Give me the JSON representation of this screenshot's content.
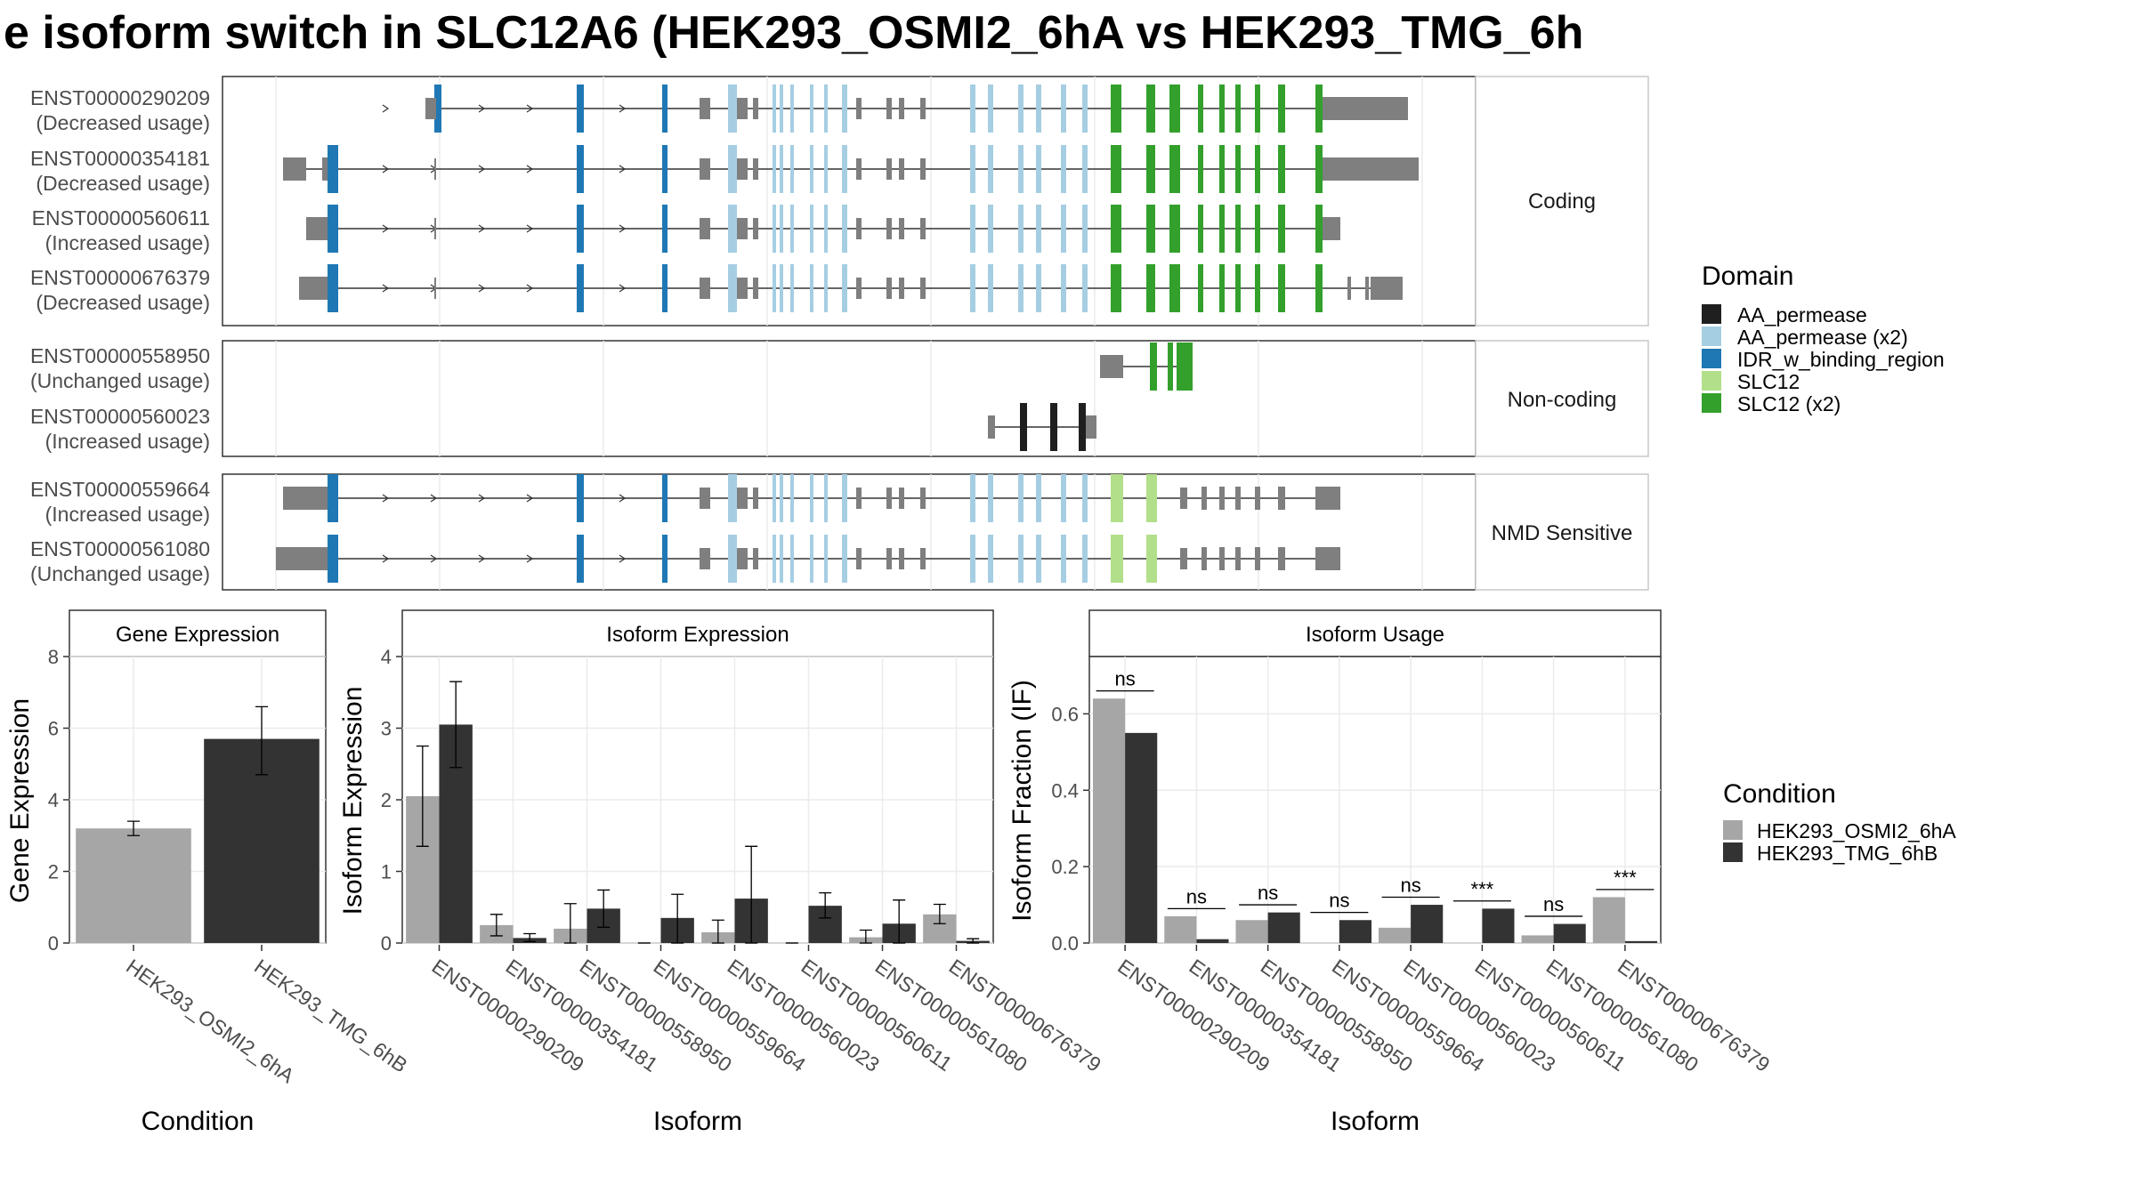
{
  "title": "e isoform switch in SLC12A6 (HEK293_OSMI2_6hA vs HEK293_TMG_6h",
  "colors": {
    "AA_permease": "#1f1f1f",
    "AA_permease (x2)": "#a6cee3",
    "IDR_w_binding_region": "#1f78b4",
    "SLC12": "#b2df8a",
    "SLC12 (x2)": "#33a02c",
    "utr": "#7f7f7f",
    "cond_a": "#a6a6a6",
    "cond_b": "#333333"
  },
  "structure": {
    "groups": [
      {
        "label": "Coding",
        "isoforms": [
          {
            "id": "ENST00000290209",
            "usage": "(Decreased usage)"
          },
          {
            "id": "ENST00000354181",
            "usage": "(Decreased usage)"
          },
          {
            "id": "ENST00000560611",
            "usage": "(Increased usage)"
          },
          {
            "id": "ENST00000676379",
            "usage": "(Decreased usage)"
          }
        ]
      },
      {
        "label": "Non-coding",
        "isoforms": [
          {
            "id": "ENST00000558950",
            "usage": "(Unchanged usage)"
          },
          {
            "id": "ENST00000560023",
            "usage": "(Increased usage)"
          }
        ]
      },
      {
        "label": "NMD Sensitive",
        "isoforms": [
          {
            "id": "ENST00000559664",
            "usage": "(Increased usage)"
          },
          {
            "id": "ENST00000561080",
            "usage": "(Unchanged usage)"
          }
        ]
      }
    ],
    "domain_legend": {
      "title": "Domain",
      "items": [
        "AA_permease",
        "AA_permease (x2)",
        "IDR_w_binding_region",
        "SLC12",
        "SLC12 (x2)"
      ]
    }
  },
  "chart_data": [
    {
      "type": "bar",
      "title": "Gene Expression",
      "xlabel": "Condition",
      "ylabel": "Gene Expression",
      "ylim": [
        0,
        8
      ],
      "yticks": [
        0,
        2,
        4,
        6,
        8
      ],
      "categories": [
        "HEK293_OSMI2_6hA",
        "HEK293_TMG_6hB"
      ],
      "values": [
        3.2,
        5.7
      ],
      "errors": [
        [
          3.0,
          3.4
        ],
        [
          4.7,
          6.6
        ]
      ]
    },
    {
      "type": "bar",
      "title": "Isoform Expression",
      "xlabel": "Isoform",
      "ylabel": "Isoform Expression",
      "ylim": [
        0,
        4
      ],
      "yticks": [
        0,
        1,
        2,
        3,
        4
      ],
      "categories": [
        "ENST00000290209",
        "ENST00000354181",
        "ENST00000558950",
        "ENST00000559664",
        "ENST00000560023",
        "ENST00000560611",
        "ENST00000561080",
        "ENST00000676379"
      ],
      "series": [
        {
          "name": "HEK293_OSMI2_6hA",
          "values": [
            2.05,
            0.25,
            0.2,
            0.0,
            0.15,
            0.0,
            0.08,
            0.4
          ],
          "errors": [
            [
              1.35,
              2.75
            ],
            [
              0.1,
              0.4
            ],
            [
              0.0,
              0.55
            ],
            [
              0.0,
              0.0
            ],
            [
              0.0,
              0.32
            ],
            [
              0.0,
              0.0
            ],
            [
              0.0,
              0.18
            ],
            [
              0.27,
              0.54
            ]
          ]
        },
        {
          "name": "HEK293_TMG_6hB",
          "values": [
            3.05,
            0.07,
            0.48,
            0.35,
            0.62,
            0.52,
            0.27,
            0.03
          ],
          "errors": [
            [
              2.45,
              3.65
            ],
            [
              0.02,
              0.13
            ],
            [
              0.22,
              0.74
            ],
            [
              0.0,
              0.68
            ],
            [
              0.0,
              1.35
            ],
            [
              0.35,
              0.7
            ],
            [
              0.0,
              0.6
            ],
            [
              0.0,
              0.06
            ]
          ]
        }
      ]
    },
    {
      "type": "bar",
      "title": "Isoform Usage",
      "xlabel": "Isoform",
      "ylabel": "Isoform Fraction (IF)",
      "ylim": [
        0,
        0.75
      ],
      "yticks": [
        0.0,
        0.2,
        0.4,
        0.6
      ],
      "categories": [
        "ENST00000290209",
        "ENST00000354181",
        "ENST00000558950",
        "ENST00000559664",
        "ENST00000560023",
        "ENST00000560611",
        "ENST00000561080",
        "ENST00000676379"
      ],
      "series": [
        {
          "name": "HEK293_OSMI2_6hA",
          "values": [
            0.64,
            0.07,
            0.06,
            0.0,
            0.04,
            0.0,
            0.02,
            0.12
          ]
        },
        {
          "name": "HEK293_TMG_6hB",
          "values": [
            0.55,
            0.01,
            0.08,
            0.06,
            0.1,
            0.09,
            0.05,
            0.005
          ]
        }
      ],
      "significance": [
        "ns",
        "ns",
        "ns",
        "ns",
        "ns",
        "***",
        "ns",
        "***"
      ]
    }
  ],
  "condition_legend": {
    "title": "Condition",
    "items": [
      "HEK293_OSMI2_6hA",
      "HEK293_TMG_6hB"
    ]
  }
}
